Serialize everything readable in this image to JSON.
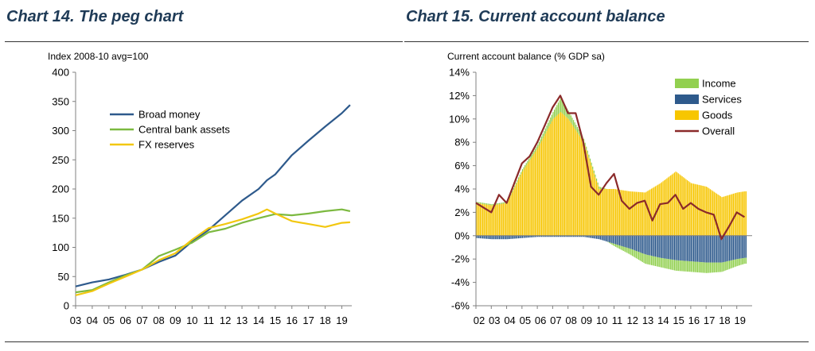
{
  "left": {
    "title": "Chart 14. The peg chart"
  },
  "right": {
    "title": "Chart 15. Current account balance"
  },
  "chart_data": [
    {
      "type": "line",
      "title": "Chart 14. The peg chart",
      "ylabel": "Index 2008-10 avg=100",
      "xlabel": "",
      "ylim": [
        0,
        400
      ],
      "yticks": [
        0,
        50,
        100,
        150,
        200,
        250,
        300,
        350,
        400
      ],
      "xlim": [
        2003,
        2019.6
      ],
      "xtick_labels": [
        "03",
        "04",
        "05",
        "06",
        "07",
        "08",
        "09",
        "10",
        "11",
        "12",
        "13",
        "14",
        "15",
        "16",
        "17",
        "18",
        "19"
      ],
      "legend_position": "top-left",
      "grid": false,
      "series": [
        {
          "name": "Broad money",
          "color": "#2e5a8c",
          "x": [
            2003,
            2004,
            2005,
            2006,
            2007,
            2008,
            2009,
            2010,
            2011,
            2012,
            2013,
            2014,
            2014.5,
            2015,
            2016,
            2017,
            2018,
            2019,
            2019.5
          ],
          "y": [
            33,
            40,
            45,
            53,
            62,
            75,
            86,
            110,
            130,
            155,
            180,
            200,
            215,
            225,
            258,
            283,
            307,
            330,
            344
          ]
        },
        {
          "name": "Central bank assets",
          "color": "#7cb940",
          "x": [
            2003,
            2004,
            2005,
            2006,
            2007,
            2008,
            2009,
            2010,
            2011,
            2012,
            2013,
            2014,
            2015,
            2016,
            2017,
            2018,
            2019,
            2019.5
          ],
          "y": [
            23,
            27,
            40,
            52,
            62,
            85,
            96,
            108,
            126,
            132,
            142,
            150,
            157,
            155,
            158,
            162,
            165,
            162
          ]
        },
        {
          "name": "FX reserves",
          "color": "#f2c70f",
          "x": [
            2003,
            2004,
            2005,
            2006,
            2007,
            2008,
            2009,
            2010,
            2011,
            2012,
            2013,
            2014,
            2014.5,
            2015,
            2016,
            2017,
            2018,
            2019,
            2019.5
          ],
          "y": [
            18,
            25,
            38,
            50,
            62,
            78,
            90,
            113,
            133,
            140,
            148,
            158,
            165,
            158,
            145,
            140,
            135,
            142,
            143
          ]
        }
      ]
    },
    {
      "type": "bar",
      "title": "Chart 15. Current account balance",
      "ylabel": "Current account balance (% GDP sa)",
      "xlabel": "",
      "ylim": [
        -6,
        14
      ],
      "yticks": [
        -6,
        -4,
        -2,
        0,
        2,
        4,
        6,
        8,
        10,
        12,
        14
      ],
      "ytick_format": "percent",
      "xlim": [
        2002,
        2020
      ],
      "xtick_labels": [
        "02",
        "03",
        "04",
        "05",
        "06",
        "07",
        "08",
        "09",
        "10",
        "11",
        "12",
        "13",
        "14",
        "15",
        "16",
        "17",
        "18",
        "19"
      ],
      "legend_position": "top-right",
      "grid": false,
      "stacked": true,
      "series": [
        {
          "name": "Income",
          "color": "#92d050",
          "x": [
            2002,
            2003,
            2004,
            2005,
            2006,
            2007,
            2007.5,
            2008,
            2009,
            2010,
            2011,
            2012,
            2013,
            2014,
            2015,
            2016,
            2017,
            2018,
            2019,
            2019.5
          ],
          "values": [
            0.1,
            0.1,
            0.1,
            0.2,
            0.3,
            0.6,
            1.2,
            0.7,
            0.3,
            0.2,
            -0.2,
            -0.5,
            -0.8,
            -0.8,
            -0.9,
            -0.9,
            -0.9,
            -0.8,
            -0.6,
            -0.5
          ]
        },
        {
          "name": "Services",
          "color": "#2e5a8c",
          "x": [
            2002,
            2003,
            2004,
            2005,
            2006,
            2007,
            2007.5,
            2008,
            2009,
            2010,
            2011,
            2012,
            2013,
            2014,
            2015,
            2016,
            2017,
            2018,
            2019,
            2019.5
          ],
          "values": [
            -0.2,
            -0.3,
            -0.3,
            -0.2,
            -0.1,
            -0.1,
            -0.1,
            -0.1,
            -0.1,
            -0.3,
            -0.7,
            -1.1,
            -1.6,
            -1.9,
            -2.1,
            -2.2,
            -2.3,
            -2.3,
            -2.0,
            -1.9
          ]
        },
        {
          "name": "Goods",
          "color": "#f7c600",
          "x": [
            2002,
            2003,
            2004,
            2005,
            2006,
            2007,
            2007.5,
            2008,
            2009,
            2010,
            2011,
            2012,
            2013,
            2014,
            2015,
            2016,
            2017,
            2018,
            2019,
            2019.5
          ],
          "values": [
            2.8,
            2.6,
            2.8,
            5.5,
            7.5,
            10.0,
            10.6,
            10.0,
            8.0,
            4.0,
            4.0,
            3.8,
            3.7,
            4.5,
            5.5,
            4.5,
            4.2,
            3.3,
            3.7,
            3.8
          ]
        },
        {
          "name": "Overall",
          "type": "line",
          "color": "#8b2a2a",
          "x": [
            2002,
            2003,
            2003.5,
            2004,
            2004.5,
            2005,
            2005.5,
            2006,
            2006.5,
            2007,
            2007.5,
            2008,
            2008.5,
            2009,
            2009.5,
            2010,
            2010.5,
            2011,
            2011.5,
            2012,
            2012.5,
            2013,
            2013.5,
            2014,
            2014.5,
            2015,
            2015.5,
            2016,
            2016.5,
            2017,
            2017.5,
            2018,
            2018.5,
            2019,
            2019.5
          ],
          "values": [
            2.8,
            2.0,
            3.5,
            2.8,
            4.5,
            6.2,
            6.8,
            8.0,
            9.5,
            11.0,
            12.0,
            10.5,
            10.5,
            8.0,
            4.2,
            3.5,
            4.5,
            5.3,
            3.0,
            2.3,
            2.8,
            3.0,
            1.3,
            2.7,
            2.8,
            3.5,
            2.3,
            2.8,
            2.3,
            2.0,
            1.8,
            -0.3,
            0.8,
            2.0,
            1.6
          ]
        }
      ]
    }
  ]
}
